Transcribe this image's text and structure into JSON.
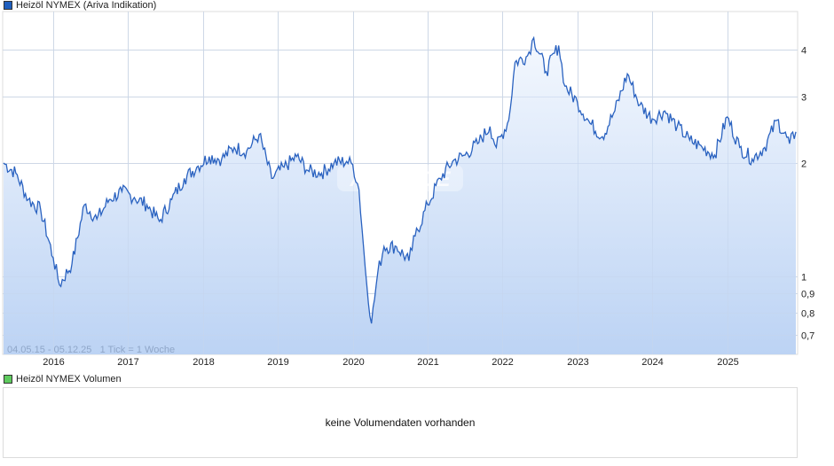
{
  "legend": {
    "price_label": "Heizöl NYMEX (Ariva Indikation)",
    "price_color": "#1f5fbf",
    "volume_label": "Heizöl NYMEX Volumen",
    "volume_color": "#5ecb5e"
  },
  "range_text": "04.05.15 - 05.12.25   1 Tick = 1 Woche",
  "watermark": "ARIVA.DE",
  "volume_panel": {
    "message": "keine Volumendaten vorhanden"
  },
  "chart_data": {
    "type": "area",
    "title": "Heizöl NYMEX (Ariva Indikation)",
    "xlabel": "",
    "ylabel": "",
    "y_scale": "log",
    "ylim": [
      0.62,
      4.8
    ],
    "y_ticks": [
      {
        "value": 4,
        "label": "4"
      },
      {
        "value": 3,
        "label": "3"
      },
      {
        "value": 2,
        "label": "2"
      },
      {
        "value": 1,
        "label": "1"
      },
      {
        "value": 0.9,
        "label": "0,9"
      },
      {
        "value": 0.8,
        "label": "0,8"
      },
      {
        "value": 0.7,
        "label": "0,7"
      }
    ],
    "x_ticks": [
      "2016",
      "2017",
      "2018",
      "2019",
      "2020",
      "2021",
      "2022",
      "2023",
      "2024",
      "2025"
    ],
    "date_range": "04.05.15 - 05.12.25",
    "tick_interval": "1 Woche",
    "grid": true,
    "legend_position": "top-left",
    "series": [
      {
        "name": "Heizöl NYMEX",
        "x": [
          "2015-05",
          "2015-07",
          "2015-09",
          "2015-11",
          "2016-01",
          "2016-02",
          "2016-04",
          "2016-06",
          "2016-08",
          "2016-10",
          "2016-12",
          "2017-02",
          "2017-04",
          "2017-06",
          "2017-08",
          "2017-10",
          "2017-12",
          "2018-02",
          "2018-04",
          "2018-06",
          "2018-08",
          "2018-10",
          "2018-12",
          "2019-02",
          "2019-04",
          "2019-06",
          "2019-08",
          "2019-10",
          "2019-12",
          "2020-01",
          "2020-02",
          "2020-03",
          "2020-04",
          "2020-05",
          "2020-06",
          "2020-08",
          "2020-10",
          "2020-11",
          "2021-01",
          "2021-03",
          "2021-05",
          "2021-07",
          "2021-09",
          "2021-11",
          "2021-12",
          "2022-02",
          "2022-03",
          "2022-05",
          "2022-06",
          "2022-08",
          "2022-10",
          "2022-11",
          "2023-01",
          "2023-03",
          "2023-05",
          "2023-07",
          "2023-09",
          "2023-11",
          "2024-01",
          "2024-03",
          "2024-05",
          "2024-07",
          "2024-09",
          "2024-11",
          "2025-01",
          "2025-03",
          "2025-05",
          "2025-07",
          "2025-09",
          "2025-11",
          "2025-12"
        ],
        "values": [
          2.0,
          1.88,
          1.6,
          1.5,
          1.12,
          0.95,
          1.08,
          1.55,
          1.42,
          1.6,
          1.68,
          1.62,
          1.55,
          1.4,
          1.6,
          1.82,
          1.95,
          2.08,
          2.05,
          2.2,
          2.15,
          2.38,
          1.82,
          1.95,
          2.08,
          1.9,
          1.88,
          2.0,
          2.02,
          1.98,
          1.7,
          1.05,
          0.75,
          1.02,
          1.2,
          1.2,
          1.1,
          1.28,
          1.55,
          1.82,
          2.02,
          2.1,
          2.25,
          2.5,
          2.2,
          2.6,
          3.7,
          3.85,
          4.3,
          3.5,
          4.1,
          3.2,
          2.9,
          2.55,
          2.35,
          2.75,
          3.45,
          2.85,
          2.62,
          2.75,
          2.5,
          2.3,
          2.2,
          2.1,
          2.65,
          2.2,
          2.05,
          2.2,
          2.6,
          2.25,
          2.42
        ]
      }
    ]
  }
}
